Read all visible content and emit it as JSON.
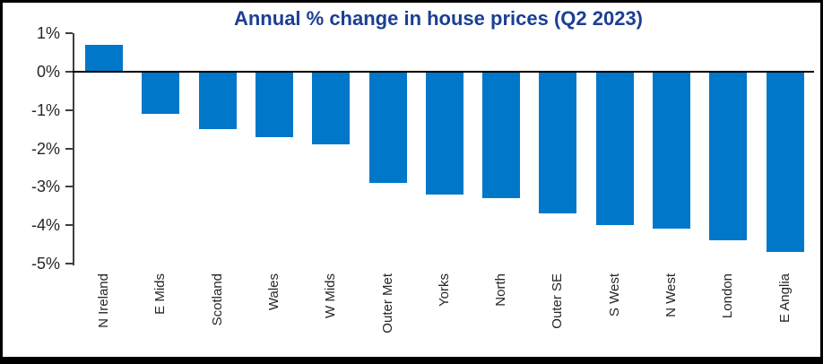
{
  "chart_data": {
    "type": "bar",
    "title": "Annual % change in house prices (Q2 2023)",
    "categories": [
      "N Ireland",
      "E Mids",
      "Scotland",
      "Wales",
      "W Mids",
      "Outer Met",
      "Yorks",
      "North",
      "Outer SE",
      "S West",
      "N West",
      "London",
      "E Anglia"
    ],
    "values": [
      0.7,
      -1.1,
      -1.5,
      -1.7,
      -1.9,
      -2.9,
      -3.2,
      -3.3,
      -3.7,
      -4.0,
      -4.1,
      -4.4,
      -4.7
    ],
    "xlabel": "",
    "ylabel": "",
    "ylim": [
      -5,
      1
    ],
    "yticks": [
      1,
      0,
      -1,
      -2,
      -3,
      -4,
      -5
    ],
    "ytick_labels": [
      "1%",
      "0%",
      "-1%",
      "-2%",
      "-3%",
      "-4%",
      "-5%"
    ],
    "grid": false,
    "legend": null,
    "x_labels_rotation_deg": -90,
    "colors": {
      "bar": "#0077C8",
      "title": "#1C3F94",
      "axis": "#3F3F3F",
      "zero_line": "#000000",
      "tick_label": "#262626",
      "background": "#FFFFFF",
      "frame_border": "#000000"
    }
  }
}
